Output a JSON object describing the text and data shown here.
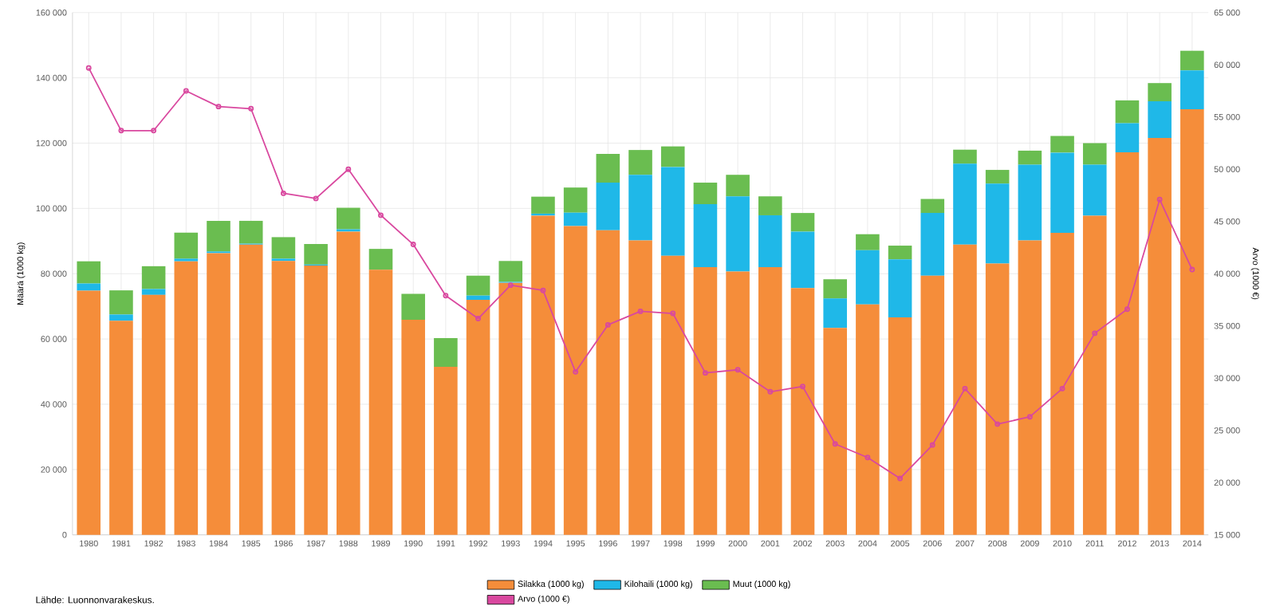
{
  "chart_data": {
    "type": "bar",
    "stacked": true,
    "grid": true,
    "legend": "bottom",
    "marker": "circle",
    "ylabel": "Määrä (1000 kg)",
    "y2label": "Arvo (1000 €)",
    "categories": [
      "1980",
      "1981",
      "1982",
      "1983",
      "1984",
      "1985",
      "1986",
      "1987",
      "1988",
      "1989",
      "1990",
      "1991",
      "1992",
      "1993",
      "1994",
      "1995",
      "1996",
      "1997",
      "1998",
      "1999",
      "2000",
      "2001",
      "2002",
      "2003",
      "2004",
      "2005",
      "2006",
      "2007",
      "2008",
      "2009",
      "2010",
      "2011",
      "2012",
      "2013",
      "2014"
    ],
    "ylim": [
      0,
      160000
    ],
    "yticks": [
      {
        "value": 0,
        "label": "0"
      },
      {
        "value": 20000,
        "label": "20 000"
      },
      {
        "value": 40000,
        "label": "40 000"
      },
      {
        "value": 60000,
        "label": "60 000"
      },
      {
        "value": 80000,
        "label": "80 000"
      },
      {
        "value": 100000,
        "label": "100 000"
      },
      {
        "value": 120000,
        "label": "120 000"
      },
      {
        "value": 140000,
        "label": "140 000"
      },
      {
        "value": 160000,
        "label": "160 000"
      }
    ],
    "y2lim": [
      15000,
      65000
    ],
    "y2ticks": [
      {
        "value": 15000,
        "label": "15 000"
      },
      {
        "value": 20000,
        "label": "20 000"
      },
      {
        "value": 25000,
        "label": "25 000"
      },
      {
        "value": 30000,
        "label": "30 000"
      },
      {
        "value": 35000,
        "label": "35 000"
      },
      {
        "value": 40000,
        "label": "40 000"
      },
      {
        "value": 45000,
        "label": "45 000"
      },
      {
        "value": 50000,
        "label": "50 000"
      },
      {
        "value": 55000,
        "label": "55 000"
      },
      {
        "value": 60000,
        "label": "60 000"
      },
      {
        "value": 65000,
        "label": "65 000"
      }
    ],
    "series": [
      {
        "name": "Silakka (1000 kg)",
        "color": "#f58d3a",
        "values": [
          74800,
          65600,
          73500,
          83800,
          86300,
          88900,
          83900,
          82500,
          92900,
          81200,
          65900,
          51500,
          72000,
          77200,
          97800,
          94600,
          93300,
          90200,
          85500,
          82000,
          80700,
          82000,
          75600,
          63400,
          70600,
          66600,
          79400,
          88900,
          83100,
          90200,
          92500,
          97800,
          117200,
          121600,
          130400
        ]
      },
      {
        "name": "Kilohaili (1000 kg)",
        "color": "#1fb8e8",
        "values": [
          2200,
          1900,
          1800,
          800,
          500,
          300,
          700,
          300,
          700,
          null,
          0,
          0,
          1300,
          300,
          600,
          4100,
          14600,
          20100,
          27200,
          19300,
          23000,
          15900,
          17300,
          9000,
          16600,
          17800,
          19200,
          24800,
          24500,
          23200,
          24600,
          15600,
          8900,
          11200,
          11900
        ]
      },
      {
        "name": "Muut (1000 kg)",
        "color": "#6abd50",
        "values": [
          6800,
          7400,
          7000,
          8000,
          9400,
          7000,
          6600,
          6300,
          6600,
          6400,
          7900,
          8800,
          6100,
          6400,
          5200,
          7700,
          8800,
          7600,
          6300,
          6600,
          6600,
          5800,
          5700,
          5900,
          4900,
          4200,
          4300,
          4300,
          4200,
          4300,
          5100,
          6600,
          7000,
          5600,
          6000
        ]
      },
      {
        "name": "Arvo (1000 €)",
        "color": "#d9489f",
        "type": "line",
        "axis": "y2",
        "values": [
          59700,
          53700,
          53700,
          57500,
          56000,
          55800,
          47700,
          47200,
          50000,
          45600,
          42800,
          37900,
          35700,
          38900,
          38400,
          30600,
          35100,
          36400,
          36200,
          30500,
          30800,
          28700,
          29200,
          23700,
          22400,
          20400,
          23600,
          29000,
          25600,
          26300,
          29000,
          34300,
          36600,
          47100,
          40400
        ]
      }
    ],
    "annotations": [
      "Lähde: Luonnonvarakeskus."
    ]
  }
}
